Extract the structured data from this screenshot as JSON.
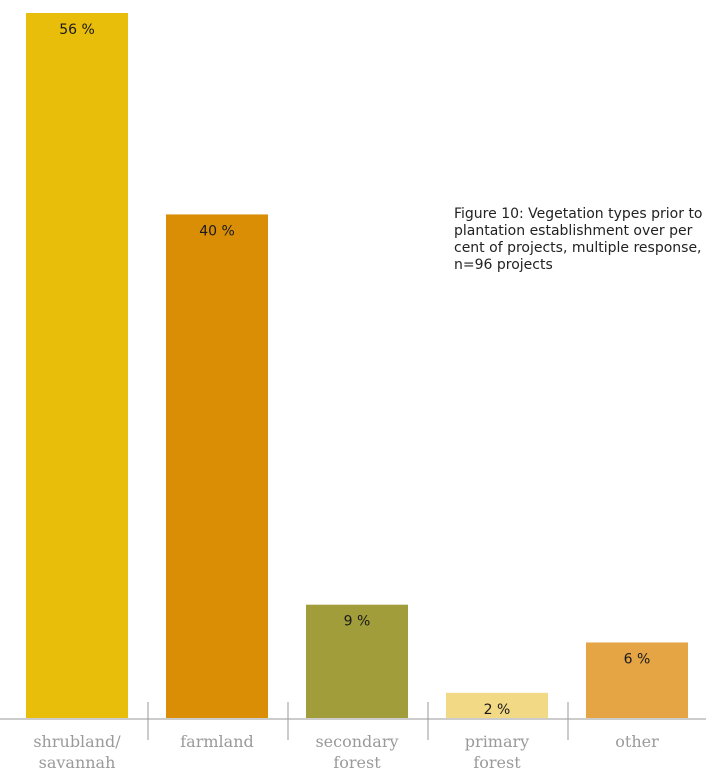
{
  "caption": "Figure 10: Vegetation types prior to plantation establishment over per cent of projects, multiple response, n=96 projects",
  "chart_data": {
    "type": "bar",
    "categories": [
      [
        "shrubland/",
        "savannah"
      ],
      [
        "farmland"
      ],
      [
        "secondary",
        "forest"
      ],
      [
        "primary",
        "forest"
      ],
      [
        "other"
      ]
    ],
    "values": [
      56,
      40,
      9,
      2,
      6
    ],
    "value_labels": [
      "56 %",
      "40 %",
      "9 %",
      "2 %",
      "6 %"
    ],
    "colors": [
      "#E8BE0A",
      "#D98E05",
      "#A19D3B",
      "#F2D985",
      "#E6A544"
    ],
    "axis_color": "#9a9a9a",
    "ylim": [
      0,
      56
    ]
  }
}
